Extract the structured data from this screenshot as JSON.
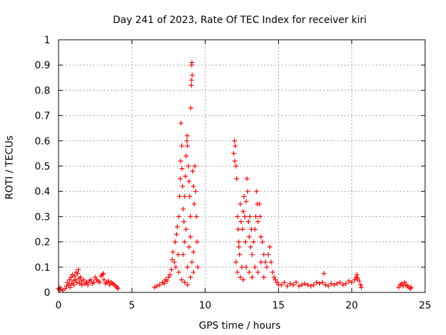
{
  "chart_data": {
    "type": "scatter",
    "title": "Day 241 of 2023, Rate Of TEC Index for receiver kiri",
    "xlabel": "GPS time / hours",
    "ylabel": "ROTI / TECUs",
    "xlim": [
      0,
      25
    ],
    "ylim": [
      0,
      1
    ],
    "xticks": [
      0,
      5,
      10,
      15,
      20,
      25
    ],
    "xtick_labels": [
      "0",
      "5",
      "10",
      "15",
      "20",
      "25"
    ],
    "yticks": [
      0,
      0.1,
      0.2,
      0.3,
      0.4,
      0.5,
      0.6,
      0.7,
      0.8,
      0.9,
      1
    ],
    "ytick_labels": [
      "0",
      "0.1",
      "0.2",
      "0.3",
      "0.4",
      "0.5",
      "0.6",
      "0.7",
      "0.8",
      "0.9",
      "1"
    ],
    "grid": true,
    "marker": "plus",
    "color": "#ff0000",
    "series": [
      {
        "points": [
          [
            0.0,
            0.015
          ],
          [
            0.05,
            0.01
          ],
          [
            0.1,
            0.02
          ],
          [
            0.15,
            0.012
          ],
          [
            0.3,
            0.008
          ],
          [
            0.45,
            0.015
          ],
          [
            0.55,
            0.025
          ],
          [
            0.6,
            0.04
          ],
          [
            0.7,
            0.03
          ],
          [
            0.75,
            0.05
          ],
          [
            0.8,
            0.02
          ],
          [
            0.85,
            0.06
          ],
          [
            0.9,
            0.035
          ],
          [
            0.95,
            0.07
          ],
          [
            1.0,
            0.045
          ],
          [
            1.05,
            0.03
          ],
          [
            1.1,
            0.065
          ],
          [
            1.15,
            0.05
          ],
          [
            1.2,
            0.08
          ],
          [
            1.25,
            0.04
          ],
          [
            1.3,
            0.075
          ],
          [
            1.35,
            0.09
          ],
          [
            1.4,
            0.055
          ],
          [
            1.45,
            0.035
          ],
          [
            1.5,
            0.06
          ],
          [
            1.55,
            0.045
          ],
          [
            1.6,
            0.03
          ],
          [
            1.7,
            0.05
          ],
          [
            1.8,
            0.035
          ],
          [
            1.9,
            0.04
          ],
          [
            2.0,
            0.03
          ],
          [
            2.1,
            0.045
          ],
          [
            2.2,
            0.05
          ],
          [
            2.3,
            0.035
          ],
          [
            2.4,
            0.04
          ],
          [
            2.5,
            0.06
          ],
          [
            2.6,
            0.05
          ],
          [
            2.7,
            0.045
          ],
          [
            2.8,
            0.04
          ],
          [
            2.9,
            0.065
          ],
          [
            3.0,
            0.07
          ],
          [
            3.05,
            0.075
          ],
          [
            3.1,
            0.05
          ],
          [
            3.2,
            0.035
          ],
          [
            3.3,
            0.04
          ],
          [
            3.4,
            0.045
          ],
          [
            3.5,
            0.03
          ],
          [
            3.6,
            0.04
          ],
          [
            3.7,
            0.035
          ],
          [
            3.8,
            0.03
          ],
          [
            3.9,
            0.025
          ],
          [
            4.0,
            0.02
          ],
          [
            4.05,
            0.015
          ],
          [
            6.55,
            0.02
          ],
          [
            6.7,
            0.025
          ],
          [
            6.9,
            0.03
          ],
          [
            7.1,
            0.04
          ],
          [
            7.2,
            0.035
          ],
          [
            7.3,
            0.05
          ],
          [
            7.4,
            0.045
          ],
          [
            7.5,
            0.06
          ],
          [
            7.6,
            0.07
          ],
          [
            7.7,
            0.09
          ],
          [
            7.75,
            0.13
          ],
          [
            7.8,
            0.16
          ],
          [
            7.9,
            0.12
          ],
          [
            7.95,
            0.2
          ],
          [
            8.0,
            0.1
          ],
          [
            8.05,
            0.23
          ],
          [
            8.1,
            0.26
          ],
          [
            8.15,
            0.15
          ],
          [
            8.2,
            0.3
          ],
          [
            8.25,
            0.38
          ],
          [
            8.3,
            0.45
          ],
          [
            8.32,
            0.52
          ],
          [
            8.35,
            0.67
          ],
          [
            8.4,
            0.58
          ],
          [
            8.42,
            0.49
          ],
          [
            8.45,
            0.42
          ],
          [
            8.5,
            0.33
          ],
          [
            8.55,
            0.28
          ],
          [
            8.6,
            0.38
          ],
          [
            8.65,
            0.46
          ],
          [
            8.7,
            0.54
          ],
          [
            8.75,
            0.6
          ],
          [
            8.78,
            0.62
          ],
          [
            8.8,
            0.58
          ],
          [
            8.85,
            0.5
          ],
          [
            8.9,
            0.44
          ],
          [
            8.95,
            0.38
          ],
          [
            9.0,
            0.3
          ],
          [
            9.02,
            0.73
          ],
          [
            9.05,
            0.82
          ],
          [
            9.07,
            0.84
          ],
          [
            9.08,
            0.9
          ],
          [
            9.1,
            0.91
          ],
          [
            9.12,
            0.86
          ],
          [
            9.15,
            0.48
          ],
          [
            9.2,
            0.42
          ],
          [
            9.25,
            0.35
          ],
          [
            9.3,
            0.5
          ],
          [
            9.35,
            0.4
          ],
          [
            9.4,
            0.3
          ],
          [
            9.45,
            0.2
          ],
          [
            9.5,
            0.1
          ],
          [
            8.5,
            0.15
          ],
          [
            8.6,
            0.2
          ],
          [
            8.7,
            0.25
          ],
          [
            8.8,
            0.1
          ],
          [
            8.9,
            0.18
          ],
          [
            9.0,
            0.22
          ],
          [
            9.1,
            0.12
          ],
          [
            9.2,
            0.16
          ],
          [
            8.2,
            0.08
          ],
          [
            8.4,
            0.05
          ],
          [
            8.6,
            0.04
          ],
          [
            8.8,
            0.03
          ],
          [
            9.0,
            0.06
          ],
          [
            9.2,
            0.08
          ],
          [
            11.95,
            0.55
          ],
          [
            12.0,
            0.6
          ],
          [
            12.02,
            0.52
          ],
          [
            12.05,
            0.58
          ],
          [
            12.1,
            0.5
          ],
          [
            12.15,
            0.45
          ],
          [
            12.2,
            0.3
          ],
          [
            12.25,
            0.25
          ],
          [
            12.3,
            0.2
          ],
          [
            12.35,
            0.15
          ],
          [
            12.4,
            0.35
          ],
          [
            12.45,
            0.28
          ],
          [
            12.5,
            0.1
          ],
          [
            12.55,
            0.25
          ],
          [
            12.6,
            0.32
          ],
          [
            12.65,
            0.38
          ],
          [
            12.7,
            0.3
          ],
          [
            12.75,
            0.2
          ],
          [
            12.8,
            0.36
          ],
          [
            12.85,
            0.45
          ],
          [
            12.9,
            0.4
          ],
          [
            12.95,
            0.28
          ],
          [
            13.0,
            0.22
          ],
          [
            13.05,
            0.3
          ],
          [
            13.1,
            0.18
          ],
          [
            13.15,
            0.25
          ],
          [
            13.2,
            0.15
          ],
          [
            13.3,
            0.2
          ],
          [
            13.4,
            0.25
          ],
          [
            13.45,
            0.3
          ],
          [
            13.5,
            0.4
          ],
          [
            13.55,
            0.35
          ],
          [
            13.6,
            0.28
          ],
          [
            13.7,
            0.35
          ],
          [
            13.75,
            0.3
          ],
          [
            13.8,
            0.22
          ],
          [
            13.9,
            0.2
          ],
          [
            14.0,
            0.15
          ],
          [
            14.1,
            0.12
          ],
          [
            14.2,
            0.1
          ],
          [
            14.3,
            0.15
          ],
          [
            14.4,
            0.18
          ],
          [
            14.5,
            0.12
          ],
          [
            14.6,
            0.08
          ],
          [
            14.7,
            0.06
          ],
          [
            14.8,
            0.05
          ],
          [
            14.9,
            0.04
          ],
          [
            15.0,
            0.03
          ],
          [
            12.2,
            0.08
          ],
          [
            12.4,
            0.06
          ],
          [
            12.6,
            0.05
          ],
          [
            12.8,
            0.1
          ],
          [
            13.0,
            0.08
          ],
          [
            13.2,
            0.06
          ],
          [
            13.4,
            0.1
          ],
          [
            13.6,
            0.08
          ],
          [
            13.8,
            0.12
          ],
          [
            14.0,
            0.06
          ],
          [
            12.1,
            0.12
          ],
          [
            12.3,
            0.18
          ],
          [
            15.2,
            0.03
          ],
          [
            15.4,
            0.04
          ],
          [
            15.6,
            0.025
          ],
          [
            15.8,
            0.035
          ],
          [
            16.0,
            0.03
          ],
          [
            16.2,
            0.04
          ],
          [
            16.4,
            0.025
          ],
          [
            16.6,
            0.03
          ],
          [
            16.8,
            0.035
          ],
          [
            17.0,
            0.03
          ],
          [
            17.2,
            0.025
          ],
          [
            17.4,
            0.03
          ],
          [
            17.6,
            0.04
          ],
          [
            17.8,
            0.035
          ],
          [
            18.0,
            0.04
          ],
          [
            18.1,
            0.075
          ],
          [
            18.2,
            0.03
          ],
          [
            18.4,
            0.025
          ],
          [
            18.6,
            0.035
          ],
          [
            18.8,
            0.03
          ],
          [
            19.0,
            0.035
          ],
          [
            19.2,
            0.04
          ],
          [
            19.4,
            0.03
          ],
          [
            19.6,
            0.035
          ],
          [
            19.8,
            0.045
          ],
          [
            20.0,
            0.04
          ],
          [
            20.2,
            0.05
          ],
          [
            20.3,
            0.06
          ],
          [
            20.35,
            0.07
          ],
          [
            20.4,
            0.055
          ],
          [
            20.5,
            0.045
          ],
          [
            20.6,
            0.03
          ],
          [
            20.65,
            0.02
          ],
          [
            23.2,
            0.02
          ],
          [
            23.3,
            0.03
          ],
          [
            23.4,
            0.035
          ],
          [
            23.5,
            0.025
          ],
          [
            23.6,
            0.04
          ],
          [
            23.7,
            0.03
          ],
          [
            23.8,
            0.025
          ],
          [
            23.9,
            0.02
          ],
          [
            24.0,
            0.015
          ],
          [
            24.05,
            0.02
          ]
        ]
      }
    ]
  }
}
